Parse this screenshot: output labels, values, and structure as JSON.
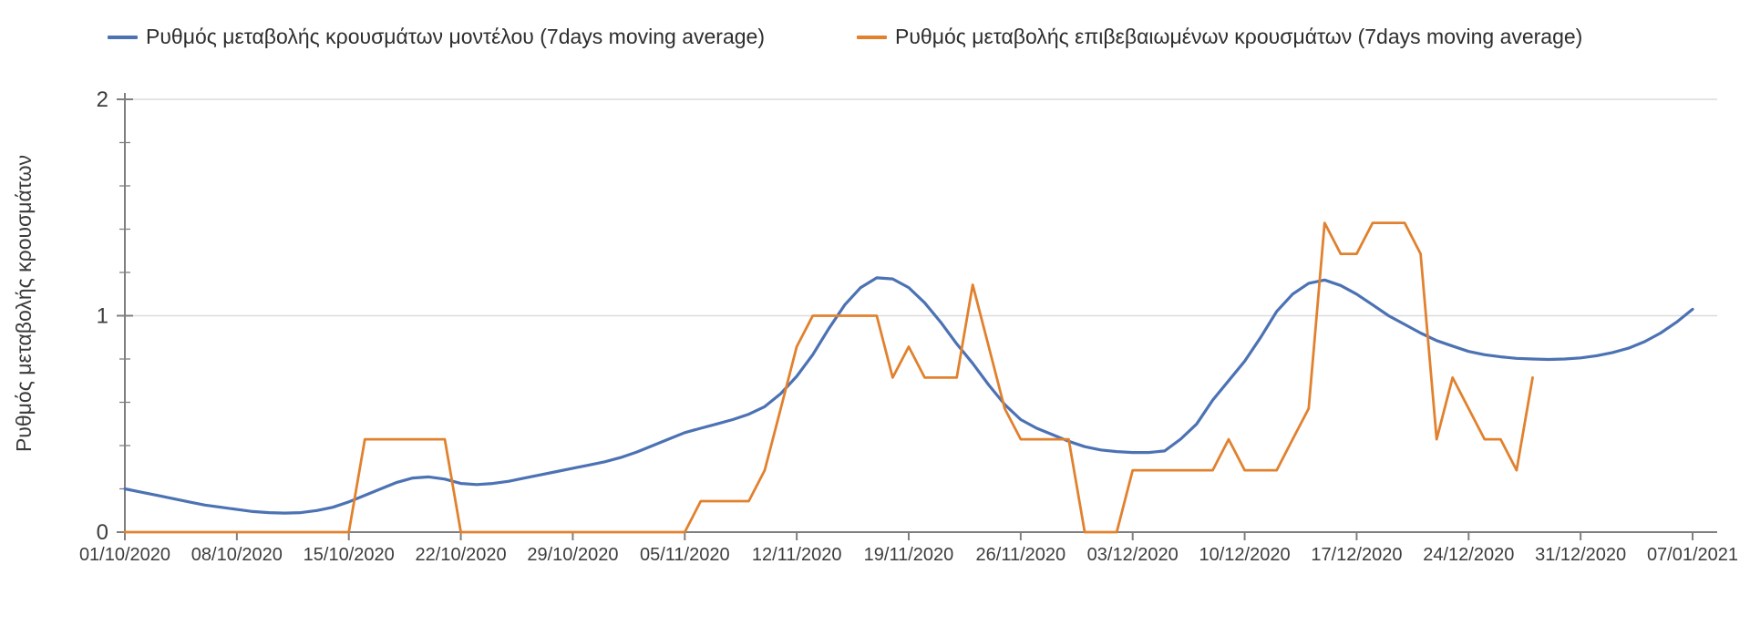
{
  "chart_data": {
    "type": "line",
    "title": "",
    "ylabel": "Ρυθμός μεταβολής κρουσμάτων",
    "xlabel": "",
    "grid": "horizontal-light",
    "legend_position": "top",
    "ylim": [
      0,
      2
    ],
    "y_ticks": [
      0,
      1,
      2
    ],
    "y_minor_tick_step": 0.2,
    "x_tick_interval_days": 7,
    "x_tick_labels": [
      "01/10/2020",
      "08/10/2020",
      "15/10/2020",
      "22/10/2020",
      "29/10/2020",
      "05/11/2020",
      "12/11/2020",
      "19/11/2020",
      "26/11/2020",
      "03/12/2020",
      "10/12/2020",
      "17/12/2020",
      "24/12/2020",
      "31/12/2020",
      "07/01/2021"
    ],
    "axis_color": "#7f7f7f",
    "gridline_color": "#dcdcdc",
    "tick_label_color": "#3d3d3d",
    "series": [
      {
        "name": "Ρυθμός μεταβολής κρουσμάτων μοντέλου (7days moving average)",
        "color": "#4c72b4",
        "x_unit": "days-since-01/10/2020",
        "values": [
          0.2,
          0.185,
          0.17,
          0.155,
          0.14,
          0.125,
          0.115,
          0.105,
          0.095,
          0.09,
          0.088,
          0.09,
          0.1,
          0.115,
          0.14,
          0.17,
          0.2,
          0.23,
          0.25,
          0.255,
          0.245,
          0.225,
          0.22,
          0.225,
          0.235,
          0.25,
          0.265,
          0.28,
          0.295,
          0.31,
          0.325,
          0.345,
          0.37,
          0.4,
          0.43,
          0.46,
          0.48,
          0.5,
          0.52,
          0.545,
          0.58,
          0.64,
          0.72,
          0.82,
          0.94,
          1.05,
          1.13,
          1.175,
          1.17,
          1.13,
          1.06,
          0.97,
          0.87,
          0.78,
          0.68,
          0.59,
          0.52,
          0.48,
          0.45,
          0.42,
          0.395,
          0.38,
          0.372,
          0.368,
          0.368,
          0.375,
          0.43,
          0.5,
          0.61,
          0.7,
          0.79,
          0.9,
          1.02,
          1.1,
          1.15,
          1.165,
          1.14,
          1.1,
          1.05,
          1.0,
          0.96,
          0.92,
          0.885,
          0.86,
          0.835,
          0.82,
          0.81,
          0.803,
          0.8,
          0.798,
          0.8,
          0.805,
          0.815,
          0.83,
          0.85,
          0.88,
          0.92,
          0.97,
          1.03
        ]
      },
      {
        "name": "Ρυθμός μεταβολής επιβεβαιωμένων κρουσμάτων (7days moving average)",
        "color": "#e1812e",
        "x_unit": "days-since-01/10/2020",
        "values": [
          0,
          0,
          0,
          0,
          0,
          0,
          0,
          0,
          0,
          0,
          0,
          0,
          0,
          0,
          0,
          0.429,
          0.429,
          0.429,
          0.429,
          0.429,
          0.429,
          0,
          0,
          0,
          0,
          0,
          0,
          0,
          0,
          0,
          0,
          0,
          0,
          0,
          0,
          0,
          0.143,
          0.143,
          0.143,
          0.143,
          0.286,
          0.571,
          0.857,
          1.0,
          1.0,
          1.0,
          1.0,
          1.0,
          0.714,
          0.857,
          0.714,
          0.714,
          0.714,
          1.143,
          0.857,
          0.571,
          0.429,
          0.429,
          0.429,
          0.429,
          0,
          0,
          0,
          0.286,
          0.286,
          0.286,
          0.286,
          0.286,
          0.286,
          0.429,
          0.286,
          0.286,
          0.286,
          0.429,
          0.571,
          1.429,
          1.286,
          1.286,
          1.429,
          1.429,
          1.429,
          1.286,
          0.429,
          0.714,
          0.571,
          0.429,
          0.429,
          0.286,
          0.714
        ]
      }
    ]
  },
  "legend": {
    "items": [
      {
        "label": "Ρυθμός μεταβολής κρουσμάτων μοντέλου (7days moving average)"
      },
      {
        "label": "Ρυθμός μεταβολής επιβεβαιωμένων κρουσμάτων (7days moving average)"
      }
    ]
  }
}
